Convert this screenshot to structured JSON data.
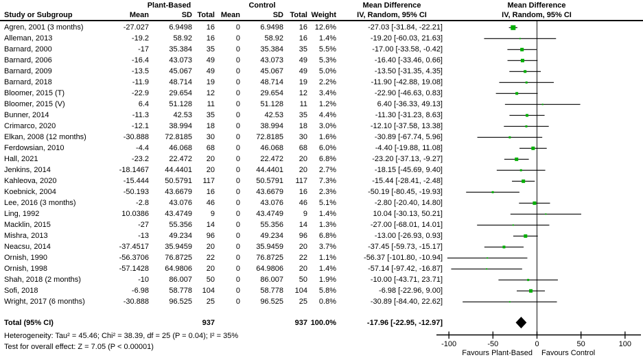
{
  "header": {
    "study": "Study or Subgroup",
    "group_plant": "Plant-Based",
    "group_control": "Control",
    "mean": "Mean",
    "sd": "SD",
    "total": "Total",
    "weight": "Weight",
    "md_title": "Mean Difference",
    "md_sub": "IV, Random, 95% CI"
  },
  "colors": {
    "marker_green": "#00ae00",
    "ci_line": "#000000",
    "zero_line": "#3c3c3c",
    "diamond": "#000000"
  },
  "chart_data": {
    "type": "forest",
    "effect_measure": "Mean Difference IV, Random, 95% CI",
    "xlim": [
      -100,
      100
    ],
    "x_ticks": [
      -100,
      -50,
      0,
      50,
      100
    ],
    "x_axis_labels": {
      "left": "Favours Plant-Based",
      "right": "Favours Control"
    },
    "studies": [
      {
        "name": "Agren, 2001 (3 months)",
        "pb_mean": "-27.027",
        "pb_sd": "6.9498",
        "pb_total": "16",
        "c_mean": "0",
        "c_sd": "6.9498",
        "c_total": "16",
        "weight": "12.6%",
        "md": "-27.03 [-31.84, -22.21]",
        "est": -27.03,
        "lo": -31.84,
        "hi": -22.21,
        "w": 12.6
      },
      {
        "name": "Alleman, 2013",
        "pb_mean": "-19.2",
        "pb_sd": "58.92",
        "pb_total": "16",
        "c_mean": "0",
        "c_sd": "58.92",
        "c_total": "16",
        "weight": "1.4%",
        "md": "-19.20 [-60.03, 21.63]",
        "est": -19.2,
        "lo": -60.03,
        "hi": 21.63,
        "w": 1.4
      },
      {
        "name": "Barnard, 2000",
        "pb_mean": "-17",
        "pb_sd": "35.384",
        "pb_total": "35",
        "c_mean": "0",
        "c_sd": "35.384",
        "c_total": "35",
        "weight": "5.5%",
        "md": "-17.00 [-33.58, -0.42]",
        "est": -17.0,
        "lo": -33.58,
        "hi": -0.42,
        "w": 5.5
      },
      {
        "name": "Barnard, 2006",
        "pb_mean": "-16.4",
        "pb_sd": "43.073",
        "pb_total": "49",
        "c_mean": "0",
        "c_sd": "43.073",
        "c_total": "49",
        "weight": "5.3%",
        "md": "-16.40 [-33.46, 0.66]",
        "est": -16.4,
        "lo": -33.46,
        "hi": 0.66,
        "w": 5.3
      },
      {
        "name": "Barnard, 2009",
        "pb_mean": "-13.5",
        "pb_sd": "45.067",
        "pb_total": "49",
        "c_mean": "0",
        "c_sd": "45.067",
        "c_total": "49",
        "weight": "5.0%",
        "md": "-13.50 [-31.35, 4.35]",
        "est": -13.5,
        "lo": -31.35,
        "hi": 4.35,
        "w": 5.0
      },
      {
        "name": "Barnard, 2018",
        "pb_mean": "-11.9",
        "pb_sd": "48.714",
        "pb_total": "19",
        "c_mean": "0",
        "c_sd": "48.714",
        "c_total": "19",
        "weight": "2.2%",
        "md": "-11.90 [-42.88, 19.08]",
        "est": -11.9,
        "lo": -42.88,
        "hi": 19.08,
        "w": 2.2
      },
      {
        "name": "Bloomer, 2015 (T)",
        "pb_mean": "-22.9",
        "pb_sd": "29.654",
        "pb_total": "12",
        "c_mean": "0",
        "c_sd": "29.654",
        "c_total": "12",
        "weight": "3.4%",
        "md": "-22.90 [-46.63, 0.83]",
        "est": -22.9,
        "lo": -46.63,
        "hi": 0.83,
        "w": 3.4
      },
      {
        "name": "Bloomer, 2015 (V)",
        "pb_mean": "6.4",
        "pb_sd": "51.128",
        "pb_total": "11",
        "c_mean": "0",
        "c_sd": "51.128",
        "c_total": "11",
        "weight": "1.2%",
        "md": "6.40 [-36.33, 49.13]",
        "est": 6.4,
        "lo": -36.33,
        "hi": 49.13,
        "w": 1.2
      },
      {
        "name": "Bunner, 2014",
        "pb_mean": "-11.3",
        "pb_sd": "42.53",
        "pb_total": "35",
        "c_mean": "0",
        "c_sd": "42.53",
        "c_total": "35",
        "weight": "4.4%",
        "md": "-11.30 [-31.23, 8.63]",
        "est": -11.3,
        "lo": -31.23,
        "hi": 8.63,
        "w": 4.4
      },
      {
        "name": "Crimarco, 2020",
        "pb_mean": "-12.1",
        "pb_sd": "38.994",
        "pb_total": "18",
        "c_mean": "0",
        "c_sd": "38.994",
        "c_total": "18",
        "weight": "3.0%",
        "md": "-12.10 [-37.58, 13.38]",
        "est": -12.1,
        "lo": -37.58,
        "hi": 13.38,
        "w": 3.0
      },
      {
        "name": "Elkan, 2008 (12 months)",
        "pb_mean": "-30.888",
        "pb_sd": "72.8185",
        "pb_total": "30",
        "c_mean": "0",
        "c_sd": "72.8185",
        "c_total": "30",
        "weight": "1.6%",
        "md": "-30.89 [-67.74, 5.96]",
        "est": -30.89,
        "lo": -67.74,
        "hi": 5.96,
        "w": 1.6
      },
      {
        "name": "Ferdowsian, 2010",
        "pb_mean": "-4.4",
        "pb_sd": "46.068",
        "pb_total": "68",
        "c_mean": "0",
        "c_sd": "46.068",
        "c_total": "68",
        "weight": "6.0%",
        "md": "-4.40 [-19.88, 11.08]",
        "est": -4.4,
        "lo": -19.88,
        "hi": 11.08,
        "w": 6.0
      },
      {
        "name": "Hall, 2021",
        "pb_mean": "-23.2",
        "pb_sd": "22.472",
        "pb_total": "20",
        "c_mean": "0",
        "c_sd": "22.472",
        "c_total": "20",
        "weight": "6.8%",
        "md": "-23.20 [-37.13, -9.27]",
        "est": -23.2,
        "lo": -37.13,
        "hi": -9.27,
        "w": 6.8
      },
      {
        "name": "Jenkins, 2014",
        "pb_mean": "-18.1467",
        "pb_sd": "44.4401",
        "pb_total": "20",
        "c_mean": "0",
        "c_sd": "44.4401",
        "c_total": "20",
        "weight": "2.7%",
        "md": "-18.15 [-45.69, 9.40]",
        "est": -18.15,
        "lo": -45.69,
        "hi": 9.4,
        "w": 2.7
      },
      {
        "name": "Kahleova, 2020",
        "pb_mean": "-15.444",
        "pb_sd": "50.5791",
        "pb_total": "117",
        "c_mean": "0",
        "c_sd": "50.5791",
        "c_total": "117",
        "weight": "7.3%",
        "md": "-15.44 [-28.41, -2.48]",
        "est": -15.44,
        "lo": -28.41,
        "hi": -2.48,
        "w": 7.3
      },
      {
        "name": "Koebnick, 2004",
        "pb_mean": "-50.193",
        "pb_sd": "43.6679",
        "pb_total": "16",
        "c_mean": "0",
        "c_sd": "43.6679",
        "c_total": "16",
        "weight": "2.3%",
        "md": "-50.19 [-80.45, -19.93]",
        "est": -50.19,
        "lo": -80.45,
        "hi": -19.93,
        "w": 2.3
      },
      {
        "name": "Lee, 2016 (3 months)",
        "pb_mean": "-2.8",
        "pb_sd": "43.076",
        "pb_total": "46",
        "c_mean": "0",
        "c_sd": "43.076",
        "c_total": "46",
        "weight": "5.1%",
        "md": "-2.80 [-20.40, 14.80]",
        "est": -2.8,
        "lo": -20.4,
        "hi": 14.8,
        "w": 5.1
      },
      {
        "name": "Ling, 1992",
        "pb_mean": "10.0386",
        "pb_sd": "43.4749",
        "pb_total": "9",
        "c_mean": "0",
        "c_sd": "43.4749",
        "c_total": "9",
        "weight": "1.4%",
        "md": "10.04 [-30.13, 50.21]",
        "est": 10.04,
        "lo": -30.13,
        "hi": 50.21,
        "w": 1.4
      },
      {
        "name": "Macklin, 2015",
        "pb_mean": "-27",
        "pb_sd": "55.356",
        "pb_total": "14",
        "c_mean": "0",
        "c_sd": "55.356",
        "c_total": "14",
        "weight": "1.3%",
        "md": "-27.00 [-68.01, 14.01]",
        "est": -27.0,
        "lo": -68.01,
        "hi": 14.01,
        "w": 1.3
      },
      {
        "name": "Mishra, 2013",
        "pb_mean": "-13",
        "pb_sd": "49.234",
        "pb_total": "96",
        "c_mean": "0",
        "c_sd": "49.234",
        "c_total": "96",
        "weight": "6.8%",
        "md": "-13.00 [-26.93, 0.93]",
        "est": -13.0,
        "lo": -26.93,
        "hi": 0.93,
        "w": 6.8
      },
      {
        "name": "Neacsu, 2014",
        "pb_mean": "-37.4517",
        "pb_sd": "35.9459",
        "pb_total": "20",
        "c_mean": "0",
        "c_sd": "35.9459",
        "c_total": "20",
        "weight": "3.7%",
        "md": "-37.45 [-59.73, -15.17]",
        "est": -37.45,
        "lo": -59.73,
        "hi": -15.17,
        "w": 3.7
      },
      {
        "name": "Ornish, 1990",
        "pb_mean": "-56.3706",
        "pb_sd": "76.8725",
        "pb_total": "22",
        "c_mean": "0",
        "c_sd": "76.8725",
        "c_total": "22",
        "weight": "1.1%",
        "md": "-56.37 [-101.80, -10.94]",
        "est": -56.37,
        "lo": -101.8,
        "hi": -10.94,
        "w": 1.1
      },
      {
        "name": "Ornish, 1998",
        "pb_mean": "-57.1428",
        "pb_sd": "64.9806",
        "pb_total": "20",
        "c_mean": "0",
        "c_sd": "64.9806",
        "c_total": "20",
        "weight": "1.4%",
        "md": "-57.14 [-97.42, -16.87]",
        "est": -57.14,
        "lo": -97.42,
        "hi": -16.87,
        "w": 1.4
      },
      {
        "name": "Shah, 2018 (2 months)",
        "pb_mean": "-10",
        "pb_sd": "86.007",
        "pb_total": "50",
        "c_mean": "0",
        "c_sd": "86.007",
        "c_total": "50",
        "weight": "1.9%",
        "md": "-10.00 [-43.71, 23.71]",
        "est": -10.0,
        "lo": -43.71,
        "hi": 23.71,
        "w": 1.9
      },
      {
        "name": "Sofi, 2018",
        "pb_mean": "-6.98",
        "pb_sd": "58.778",
        "pb_total": "104",
        "c_mean": "0",
        "c_sd": "58.778",
        "c_total": "104",
        "weight": "5.8%",
        "md": "-6.98 [-22.96, 9.00]",
        "est": -6.98,
        "lo": -22.96,
        "hi": 9.0,
        "w": 5.8
      },
      {
        "name": "Wright, 2017 (6 months)",
        "pb_mean": "-30.888",
        "pb_sd": "96.525",
        "pb_total": "25",
        "c_mean": "0",
        "c_sd": "96.525",
        "c_total": "25",
        "weight": "0.8%",
        "md": "-30.89 [-84.40, 22.62]",
        "est": -30.89,
        "lo": -84.4,
        "hi": 22.62,
        "w": 0.8
      }
    ],
    "total": {
      "label": "Total (95% CI)",
      "pb_total": "937",
      "c_total": "937",
      "weight": "100.0%",
      "md": "-17.96 [-22.95, -12.97]",
      "est": -17.96,
      "lo": -22.95,
      "hi": -12.97
    },
    "heterogeneity": "Heterogeneity: Tau² = 45.46; Chi² = 38.39, df = 25 (P = 0.04); I² = 35%",
    "overall_effect": "Test for overall effect: Z = 7.05 (P < 0.00001)"
  }
}
